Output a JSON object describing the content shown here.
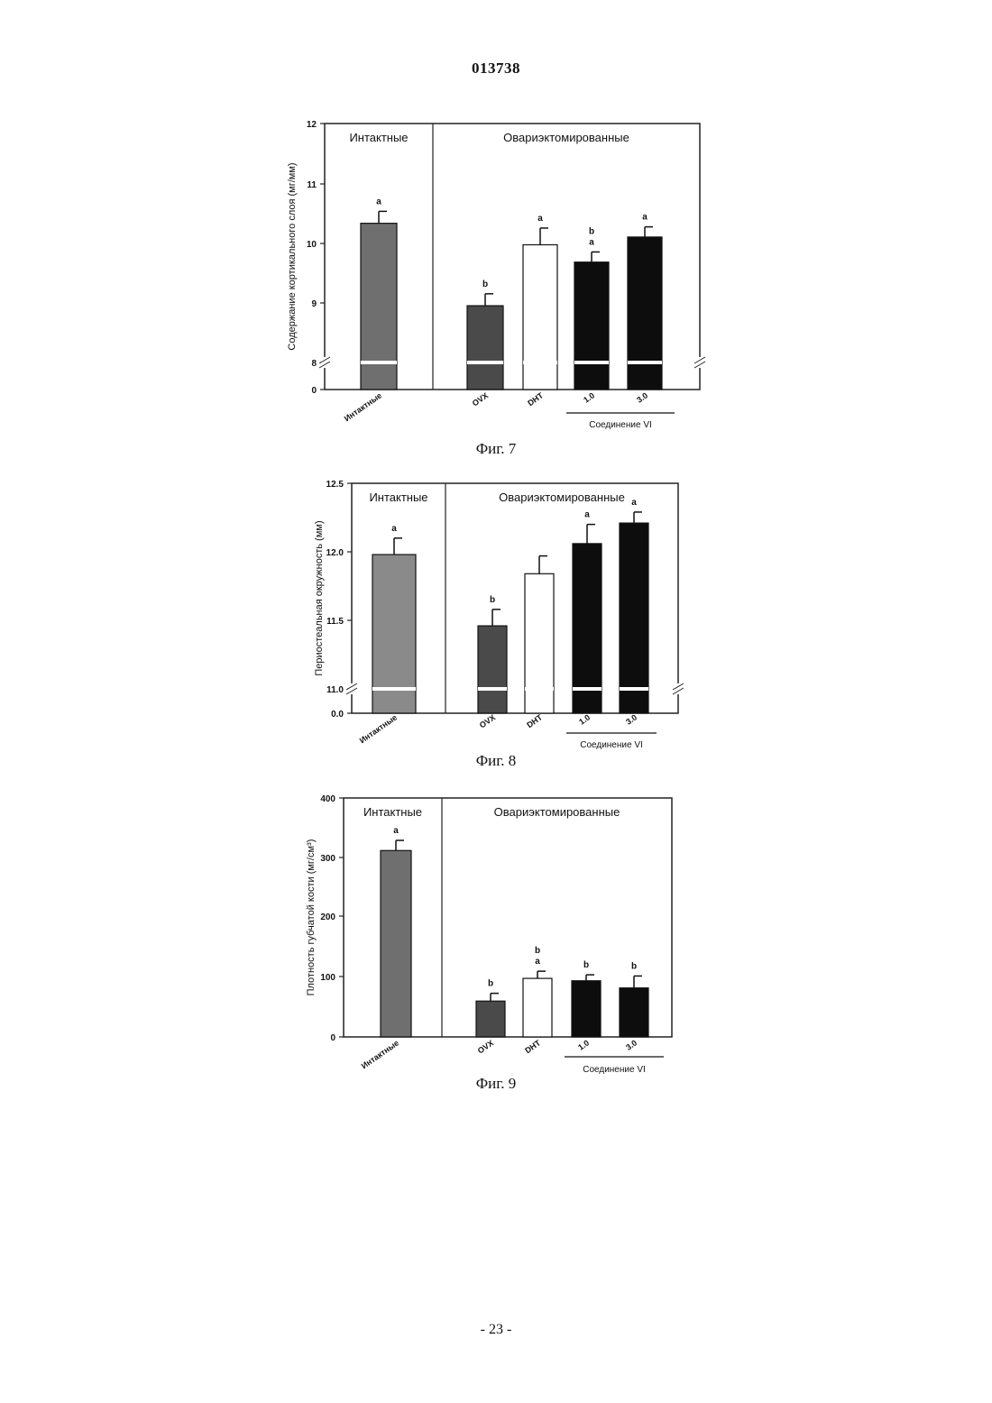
{
  "header": {
    "doc_number": "013738"
  },
  "footer": {
    "page_number": "- 23 -"
  },
  "chart_data": [
    {
      "type": "bar",
      "caption": "Фиг. 7",
      "ylabel": "Содержание кортикального слоя (мг/мм)",
      "yticks": [
        "12",
        "11",
        "10",
        "9",
        "8",
        "0"
      ],
      "ylim": [
        8,
        12
      ],
      "axis_break": true,
      "groups": [
        "Интактные",
        "Овариэктомированные"
      ],
      "categories": [
        "Интактные",
        "OVX",
        "DHT",
        "1.0",
        "3.0"
      ],
      "values": [
        10.33,
        8.95,
        9.97,
        9.68,
        10.1
      ],
      "errors": [
        0.2,
        0.2,
        0.28,
        0.17,
        0.17
      ],
      "significance": [
        "a",
        "b",
        "a",
        "b\na",
        "a"
      ],
      "fills": [
        "#6f6f6f",
        "#4a4a4a",
        "#ffffff",
        "#0d0d0d",
        "#0d0d0d"
      ],
      "compound_label": "Соединение VI"
    },
    {
      "type": "bar",
      "caption": "Фиг. 8",
      "ylabel": "Периостеальная окружность (мм)",
      "yticks": [
        "12.5",
        "12.0",
        "11.5",
        "11.0",
        "0.0"
      ],
      "ylim": [
        11.0,
        12.5
      ],
      "axis_break": true,
      "groups": [
        "Интактные",
        "Овариэктомированные"
      ],
      "categories": [
        "Интактные",
        "OVX",
        "DHT",
        "1.0",
        "3.0"
      ],
      "values": [
        11.98,
        11.46,
        11.84,
        12.06,
        12.21
      ],
      "errors": [
        0.12,
        0.12,
        0.13,
        0.14,
        0.08
      ],
      "significance": [
        "a",
        "b",
        "",
        "a",
        "a"
      ],
      "fills": [
        "#8a8a8a",
        "#4a4a4a",
        "#ffffff",
        "#0d0d0d",
        "#0d0d0d"
      ],
      "compound_label": "Соединение VI"
    },
    {
      "type": "bar",
      "caption": "Фиг. 9",
      "ylabel": "Плотность губчатой кости (мг/см³)",
      "yticks": [
        "400",
        "300",
        "200",
        "100",
        "0"
      ],
      "ylim": [
        0,
        400
      ],
      "axis_break": false,
      "groups": [
        "Интактные",
        "Овариэктомированные"
      ],
      "categories": [
        "Интактные",
        "OVX",
        "DHT",
        "1.0",
        "3.0"
      ],
      "values": [
        312,
        60,
        98,
        94,
        82
      ],
      "errors": [
        17,
        13,
        12,
        10,
        20
      ],
      "significance": [
        "a",
        "b",
        "b\na",
        "b",
        "b"
      ],
      "fills": [
        "#6f6f6f",
        "#4a4a4a",
        "#ffffff",
        "#0d0d0d",
        "#0d0d0d"
      ],
      "compound_label": "Соединение VI"
    }
  ]
}
